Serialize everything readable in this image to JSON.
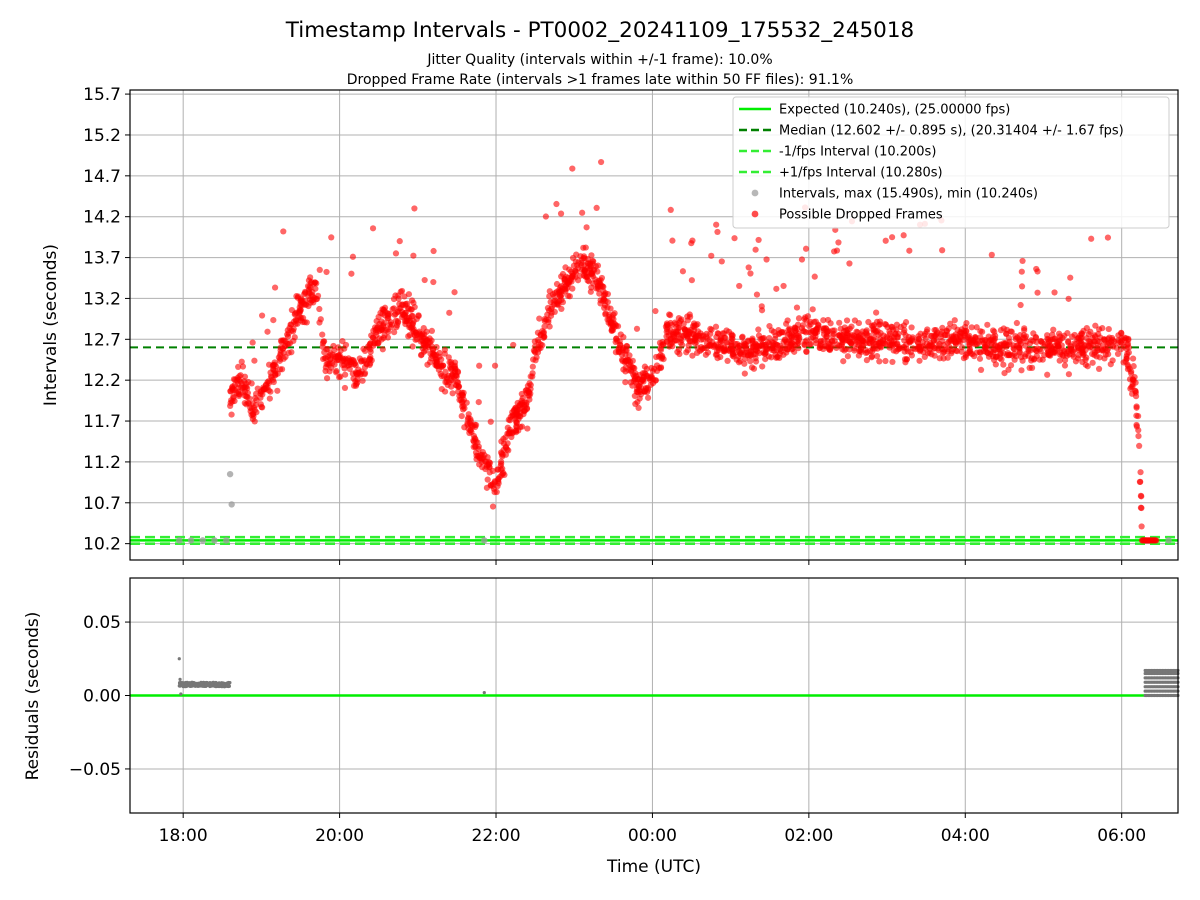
{
  "figure": {
    "title": "Timestamp Intervals - PT0002_20241109_175532_245018",
    "subtitle_1": "Jitter Quality (intervals within +/-1 frame): 10.0%",
    "subtitle_2": "Dropped Frame Rate (intervals >1 frames late within 50 FF files): 91.1%"
  },
  "colors": {
    "expected": "#00ee00",
    "median": "#008000",
    "fps_interval": "#33ee33",
    "intervals": "#999999",
    "dropped": "#ff0000",
    "residual_points": "#777777",
    "grid": "#b0b0b0"
  },
  "chart_data": [
    {
      "type": "scatter",
      "xlabel": "",
      "ylabel": "Intervals (seconds)",
      "x_range_hours": [
        17.32,
        30.72
      ],
      "ylim": [
        10.0,
        15.75
      ],
      "y_ticks": [
        "10.2",
        "10.7",
        "11.2",
        "11.7",
        "12.2",
        "12.7",
        "13.2",
        "13.7",
        "14.2",
        "14.7",
        "15.2",
        "15.7"
      ],
      "grid": true,
      "legend_position": "top-right",
      "legend": [
        {
          "label": "Expected (10.240s), (25.00000 fps)",
          "style": "solid",
          "color_key": "expected"
        },
        {
          "label": "Median (12.602 +/- 0.895 s), (20.31404 +/- 1.67 fps)",
          "style": "dashed",
          "color_key": "median"
        },
        {
          "label": "-1/fps Interval (10.200s)",
          "style": "dashed",
          "color_key": "fps_interval"
        },
        {
          "label": "+1/fps Interval (10.280s)",
          "style": "dashed",
          "color_key": "fps_interval"
        },
        {
          "label": "Intervals, max (15.490s), min (10.240s)",
          "style": "point",
          "color_key": "intervals"
        },
        {
          "label": "Possible Dropped Frames",
          "style": "point",
          "color_key": "dropped"
        }
      ],
      "hlines": {
        "expected": 10.24,
        "median": 12.602,
        "minus_fps": 10.2,
        "plus_fps": 10.28
      },
      "series": [
        {
          "name": "Possible Dropped Frames",
          "kind": "trend_scatter",
          "x_start_hours": 18.6,
          "x_end_hours": 30.26,
          "trend": [
            [
              18.6,
              12.0
            ],
            [
              18.75,
              12.2
            ],
            [
              18.9,
              11.8
            ],
            [
              19.1,
              12.2
            ],
            [
              19.3,
              12.6
            ],
            [
              19.5,
              13.1
            ],
            [
              19.7,
              13.3
            ],
            [
              19.8,
              12.5
            ],
            [
              20.0,
              12.4
            ],
            [
              20.3,
              12.3
            ],
            [
              20.5,
              12.8
            ],
            [
              20.8,
              13.1
            ],
            [
              21.0,
              12.8
            ],
            [
              21.2,
              12.5
            ],
            [
              21.5,
              12.2
            ],
            [
              21.6,
              11.8
            ],
            [
              21.8,
              11.3
            ],
            [
              22.0,
              10.9
            ],
            [
              22.1,
              11.3
            ],
            [
              22.2,
              11.7
            ],
            [
              22.4,
              11.9
            ],
            [
              22.5,
              12.5
            ],
            [
              22.7,
              13.1
            ],
            [
              22.9,
              13.4
            ],
            [
              23.1,
              13.6
            ],
            [
              23.3,
              13.5
            ],
            [
              23.5,
              12.8
            ],
            [
              23.7,
              12.4
            ],
            [
              23.8,
              12.1
            ],
            [
              24.0,
              12.2
            ],
            [
              24.2,
              12.8
            ],
            [
              24.5,
              12.75
            ],
            [
              25.0,
              12.6
            ],
            [
              25.5,
              12.6
            ],
            [
              26.0,
              12.8
            ],
            [
              26.5,
              12.7
            ],
            [
              27.0,
              12.7
            ],
            [
              27.5,
              12.6
            ],
            [
              28.0,
              12.7
            ],
            [
              28.5,
              12.6
            ],
            [
              29.0,
              12.6
            ],
            [
              29.5,
              12.6
            ],
            [
              30.0,
              12.65
            ],
            [
              30.1,
              12.5
            ],
            [
              30.18,
              12.0
            ],
            [
              30.23,
              11.2
            ],
            [
              30.26,
              10.4
            ]
          ],
          "spread": 0.22,
          "count": 2400,
          "outlier_count": 90,
          "tail_x_range": [
            30.26,
            30.45
          ],
          "tail_y": 10.24
        },
        {
          "name": "Intervals, max (15.490s), min (10.240s)",
          "kind": "points",
          "points": [
            [
              17.95,
              10.24
            ],
            [
              18.1,
              10.24
            ],
            [
              18.25,
              10.24
            ],
            [
              18.4,
              10.24
            ],
            [
              18.55,
              10.24
            ],
            [
              18.6,
              11.05
            ],
            [
              18.62,
              10.68
            ],
            [
              21.85,
              10.24
            ],
            [
              30.3,
              10.24
            ],
            [
              30.6,
              10.24
            ]
          ]
        }
      ]
    },
    {
      "type": "scatter",
      "xlabel": "Time (UTC)",
      "ylabel": "Residuals (seconds)",
      "x_range_hours": [
        17.32,
        30.72
      ],
      "ylim": [
        -0.08,
        0.08
      ],
      "y_ticks": [
        "0.05",
        "0.00",
        "−0.05"
      ],
      "y_tick_values": [
        0.05,
        0.0,
        -0.05
      ],
      "x_ticks": [
        "18:00",
        "20:00",
        "22:00",
        "00:00",
        "02:00",
        "04:00",
        "06:00"
      ],
      "x_tick_hours": [
        18,
        20,
        22,
        24,
        26,
        28,
        30
      ],
      "grid": true,
      "zero_line": 0.0,
      "series": [
        {
          "name": "",
          "kind": "band",
          "x_range_hours": [
            17.95,
            18.6
          ],
          "y_range": [
            0.006,
            0.009
          ],
          "count": 220
        },
        {
          "name": "",
          "kind": "points",
          "points": [
            [
              17.95,
              0.025
            ],
            [
              17.96,
              0.011
            ],
            [
              17.97,
              0.001
            ],
            [
              21.85,
              0.002
            ]
          ]
        },
        {
          "name": "",
          "kind": "grid_band",
          "x_range_hours": [
            30.3,
            30.72
          ],
          "y_levels": [
            0.0,
            0.003,
            0.006,
            0.009,
            0.012,
            0.015,
            0.017
          ],
          "step_hours": 0.02
        }
      ]
    }
  ]
}
